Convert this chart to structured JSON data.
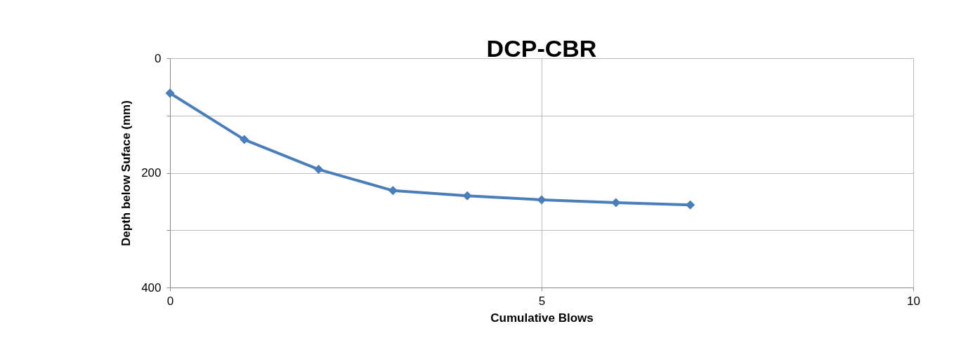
{
  "chart_data": {
    "type": "line",
    "title": "DCP-CBR",
    "xlabel": "Cumulative Blows",
    "ylabel": "Depth below Suface (mm)",
    "x": [
      0,
      1,
      2,
      3,
      4,
      5,
      6,
      7
    ],
    "series": [
      {
        "color": "#4a7ebb",
        "values": [
          61,
          142,
          194,
          231,
          240,
          247,
          252,
          256
        ]
      }
    ],
    "xlim": [
      0,
      10
    ],
    "xticks": [
      0,
      5,
      10
    ],
    "ylim": [
      400,
      0
    ],
    "yticks": [
      0,
      {
        "value": 100,
        "label": null
      },
      200,
      {
        "value": 300,
        "label": null
      },
      400
    ],
    "grid": true,
    "marker": "diamond",
    "line_style": "solid"
  }
}
